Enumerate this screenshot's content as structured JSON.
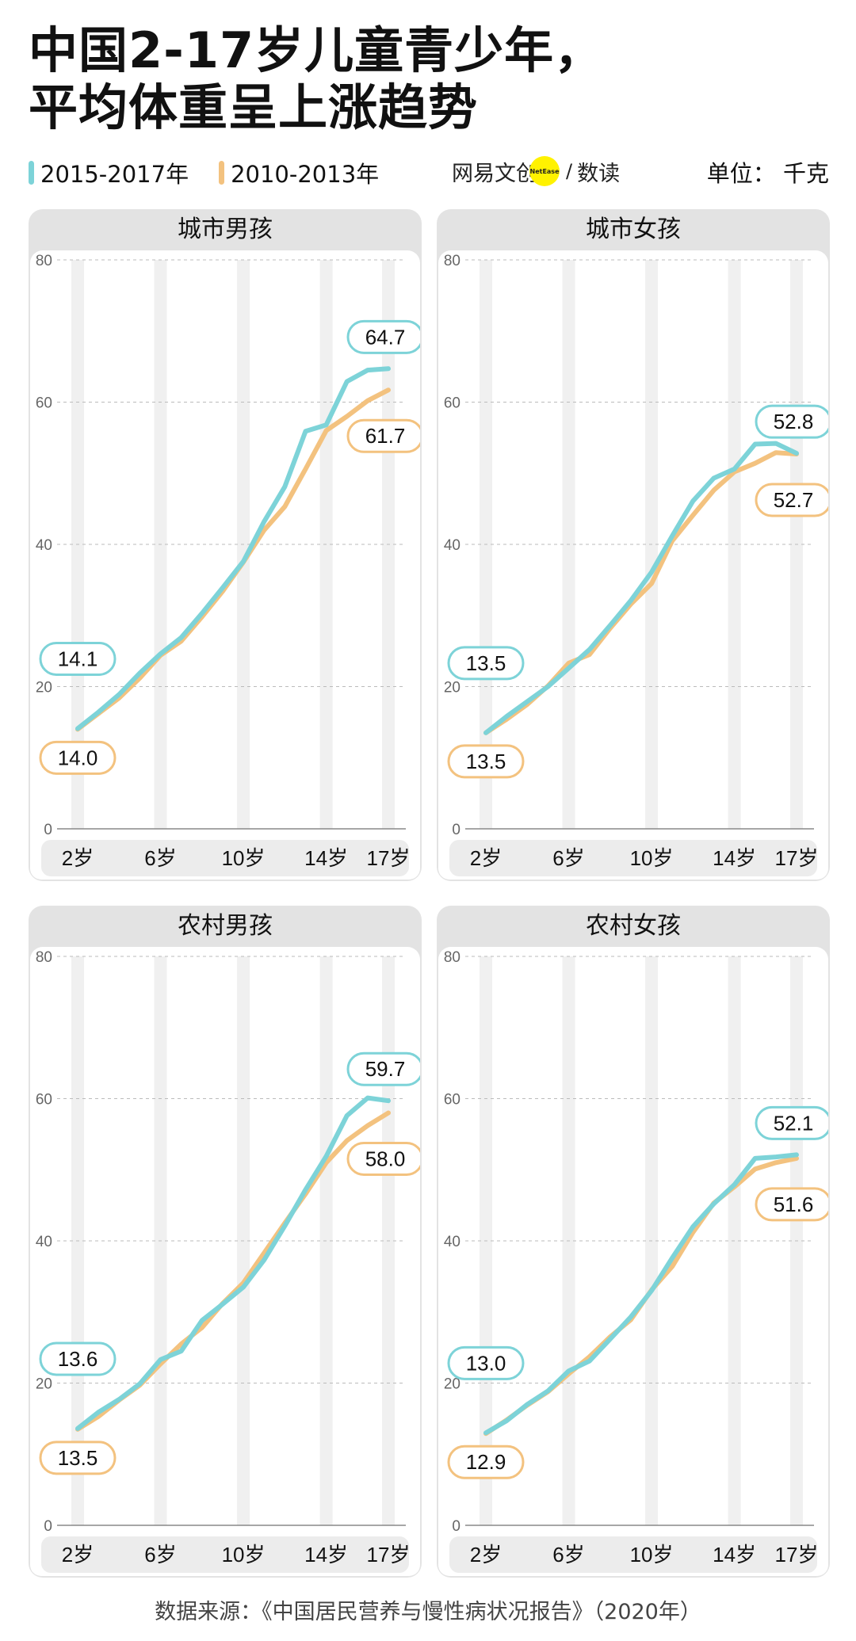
{
  "header": {
    "title_line1": "中国2-17岁儿童青少年，",
    "title_line2": "平均体重呈上涨趋势",
    "unit": "单位：  千克"
  },
  "legend": [
    {
      "label": "2015-2017年",
      "color": "#7dd3d8"
    },
    {
      "label": "2010-2013年",
      "color": "#f3c27f"
    }
  ],
  "brand": {
    "name": "网易文创",
    "dot_text": "NetEase",
    "suffix": "数读",
    "sep": "/"
  },
  "source": "数据来源：《中国居民营养与慢性病状况报告》（2020年）",
  "colors": {
    "recent": "#7dd3d8",
    "earlier": "#f3c27f",
    "axis": "#888888",
    "grid": "#bbbbbb"
  },
  "chart_data": [
    {
      "type": "line",
      "title": "城市男孩",
      "x": [
        2,
        3,
        4,
        5,
        6,
        7,
        8,
        9,
        10,
        11,
        12,
        13,
        14,
        15,
        16,
        17
      ],
      "xticks": [
        2,
        6,
        10,
        14,
        17
      ],
      "xtick_labels": [
        "2岁",
        "6岁",
        "10岁",
        "14岁",
        "17岁"
      ],
      "yticks": [
        0,
        20,
        40,
        60,
        80
      ],
      "ylim": [
        0,
        80
      ],
      "series": [
        {
          "name": "2015-2017年",
          "values": [
            14.1,
            16.4,
            18.9,
            21.9,
            24.6,
            26.9,
            30.3,
            33.9,
            37.6,
            43.2,
            48.1,
            55.9,
            56.8,
            62.9,
            64.5,
            64.7
          ]
        },
        {
          "name": "2010-2013年",
          "values": [
            14.0,
            16.2,
            18.4,
            21.2,
            24.4,
            26.4,
            29.8,
            33.4,
            37.5,
            42.0,
            45.3,
            50.6,
            56.0,
            58.0,
            60.2,
            61.7
          ]
        }
      ],
      "labels": {
        "start_recent": "14.1",
        "start_earlier": "14.0",
        "end_recent": "64.7",
        "end_earlier": "61.7"
      }
    },
    {
      "type": "line",
      "title": "城市女孩",
      "x": [
        2,
        3,
        4,
        5,
        6,
        7,
        8,
        9,
        10,
        11,
        12,
        13,
        14,
        15,
        16,
        17
      ],
      "xticks": [
        2,
        6,
        10,
        14,
        17
      ],
      "xtick_labels": [
        "2岁",
        "6岁",
        "10岁",
        "14岁",
        "17岁"
      ],
      "yticks": [
        0,
        20,
        40,
        60,
        80
      ],
      "ylim": [
        0,
        80
      ],
      "series": [
        {
          "name": "2015-2017年",
          "values": [
            13.5,
            15.8,
            17.9,
            20.0,
            22.6,
            25.2,
            28.6,
            32.1,
            36.1,
            41.2,
            46.1,
            49.3,
            50.6,
            54.1,
            54.2,
            52.8
          ]
        },
        {
          "name": "2010-2013年",
          "values": [
            13.5,
            15.4,
            17.5,
            20.1,
            23.3,
            24.5,
            28.2,
            31.6,
            34.5,
            40.5,
            44.1,
            47.6,
            50.2,
            51.4,
            52.9,
            52.7
          ]
        }
      ],
      "labels": {
        "start_recent": "13.5",
        "start_earlier": "13.5",
        "end_recent": "52.8",
        "end_earlier": "52.7"
      }
    },
    {
      "type": "line",
      "title": "农村男孩",
      "x": [
        2,
        3,
        4,
        5,
        6,
        7,
        8,
        9,
        10,
        11,
        12,
        13,
        14,
        15,
        16,
        17
      ],
      "xticks": [
        2,
        6,
        10,
        14,
        17
      ],
      "xtick_labels": [
        "2岁",
        "6岁",
        "10岁",
        "14岁",
        "17岁"
      ],
      "yticks": [
        0,
        20,
        40,
        60,
        80
      ],
      "ylim": [
        0,
        80
      ],
      "series": [
        {
          "name": "2015-2017年",
          "values": [
            13.6,
            15.9,
            17.7,
            19.9,
            23.3,
            24.5,
            28.8,
            31.1,
            33.5,
            37.3,
            42.1,
            47.2,
            51.9,
            57.6,
            60.1,
            59.7
          ]
        },
        {
          "name": "2010-2013年",
          "values": [
            13.5,
            15.3,
            17.6,
            19.7,
            22.7,
            25.5,
            27.8,
            31.2,
            34.1,
            38.3,
            42.5,
            46.6,
            51.0,
            54.1,
            56.2,
            58.0
          ]
        }
      ],
      "labels": {
        "start_recent": "13.6",
        "start_earlier": "13.5",
        "end_recent": "59.7",
        "end_earlier": "58.0"
      }
    },
    {
      "type": "line",
      "title": "农村女孩",
      "x": [
        2,
        3,
        4,
        5,
        6,
        7,
        8,
        9,
        10,
        11,
        12,
        13,
        14,
        15,
        16,
        17
      ],
      "xticks": [
        2,
        6,
        10,
        14,
        17
      ],
      "xtick_labels": [
        "2岁",
        "6岁",
        "10岁",
        "14岁",
        "17岁"
      ],
      "yticks": [
        0,
        20,
        40,
        60,
        80
      ],
      "ylim": [
        0,
        80
      ],
      "series": [
        {
          "name": "2015-2017年",
          "values": [
            13.0,
            14.7,
            17.0,
            18.9,
            21.7,
            23.1,
            26.2,
            29.3,
            33.0,
            37.6,
            42.0,
            45.2,
            47.9,
            51.6,
            51.8,
            52.1
          ]
        },
        {
          "name": "2010-2013年",
          "values": [
            12.9,
            14.8,
            16.9,
            18.8,
            21.3,
            23.7,
            26.5,
            28.9,
            33.1,
            36.4,
            41.2,
            45.3,
            47.6,
            50.1,
            51.0,
            51.6
          ]
        }
      ],
      "labels": {
        "start_recent": "13.0",
        "start_earlier": "12.9",
        "end_recent": "52.1",
        "end_earlier": "51.6"
      }
    }
  ]
}
